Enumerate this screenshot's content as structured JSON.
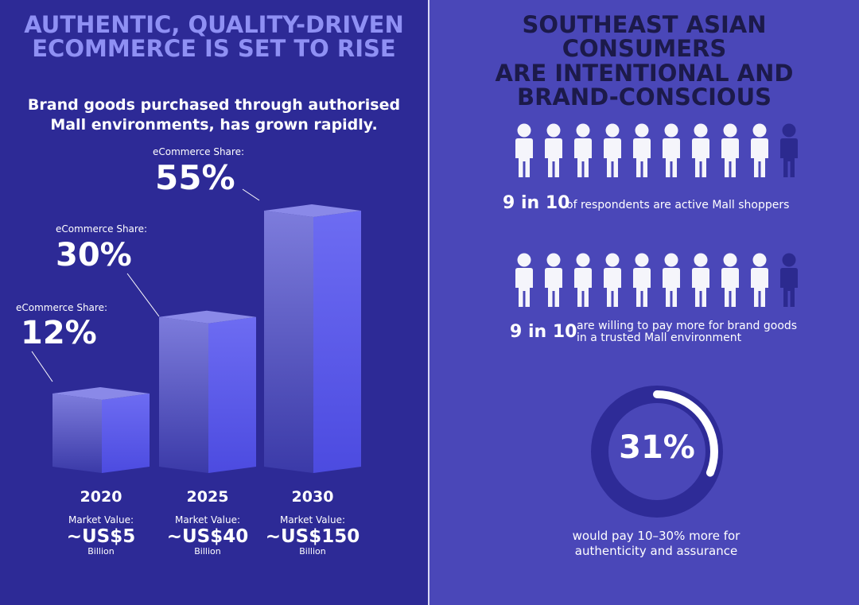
{
  "left": {
    "headline_line1": "AUTHENTIC, QUALITY-DRIVEN",
    "headline_line2": "ECOMMERCE IS SET TO RISE",
    "subheadline_line1": "Brand goods purchased through authorised",
    "subheadline_line2": "Mall environments, has grown rapidly."
  },
  "right": {
    "headline_line1": "SOUTHEAST ASIAN CONSUMERS",
    "headline_line2": "ARE INTENTIONAL AND",
    "headline_line3": "BRAND-CONSCIOUS",
    "stat1": {
      "big": "9 in 10",
      "text": "of respondents are active Mall shoppers",
      "people_total": 10,
      "people_highlighted": 9
    },
    "stat2": {
      "big": "9 in 10",
      "text_line1": "are willing to pay more for brand goods",
      "text_line2": "in a trusted Mall environment",
      "people_total": 10,
      "people_highlighted": 9
    },
    "stat3": {
      "value": "31%",
      "fraction": 0.31,
      "caption_line1": "would pay 10–30% more for",
      "caption_line2": "authenticity and assurance"
    }
  },
  "colors": {
    "left_bg": "#2d2a96",
    "right_bg": "#4a47b8",
    "left_headline": "#8f90f4",
    "right_headline": "#1c1a4a",
    "person_white": "#f5f5fb",
    "person_dim": "#2c2a8f",
    "ring_track": "#2e2b97",
    "ring_fill": "#ffffff",
    "bar_front_top": "#7d7cdc",
    "bar_front_bottom": "#3b3aa8",
    "bar_side_top": "#6d6cf2",
    "bar_side_bottom": "#4c4be0",
    "bar_top": "#8a89e8"
  },
  "chart_data": {
    "type": "bar",
    "categories": [
      "2020",
      "2025",
      "2030"
    ],
    "series": [
      {
        "values": [
          12,
          30,
          55
        ]
      }
    ],
    "share_label": "eCommerce Share:",
    "share_values": [
      "12%",
      "30%",
      "55%"
    ],
    "market_label": "Market Value:",
    "market_values": [
      "~US$5",
      "~US$40",
      "~US$150"
    ],
    "market_unit": "Billion",
    "ylim": [
      0,
      55
    ]
  }
}
